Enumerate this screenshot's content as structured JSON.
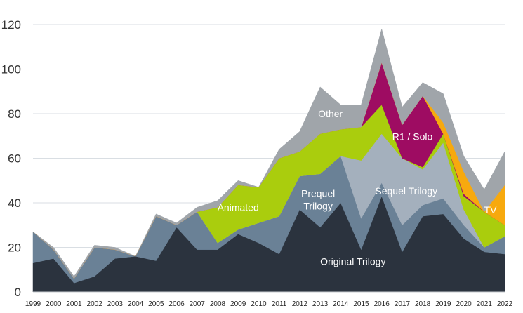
{
  "chart_data": {
    "type": "area",
    "stacked": true,
    "title": "",
    "xlabel": "",
    "ylabel": "",
    "ylim": [
      0,
      120
    ],
    "yticks": [
      0,
      20,
      40,
      60,
      80,
      100,
      120
    ],
    "grid": true,
    "categories": [
      "1999",
      "2000",
      "2001",
      "2002",
      "2003",
      "2004",
      "2005",
      "2006",
      "2007",
      "2008",
      "2009",
      "2010",
      "2011",
      "2012",
      "2013",
      "2014",
      "2015",
      "2016",
      "2017",
      "2018",
      "2019",
      "2020",
      "2021",
      "2022"
    ],
    "series": [
      {
        "name": "Original Trilogy",
        "color": "#2b333e",
        "values": [
          13,
          15,
          4,
          7,
          15,
          16,
          14,
          29,
          19,
          19,
          26,
          22,
          17,
          37,
          29,
          40,
          19,
          43,
          18,
          34,
          35,
          24,
          18,
          17
        ]
      },
      {
        "name": "Prequel Trilogy",
        "color": "#6a8196",
        "values": [
          14,
          4,
          2,
          13,
          4,
          0,
          20,
          1,
          17,
          3,
          2,
          9,
          17,
          15,
          24,
          21,
          14,
          6,
          12,
          5,
          7,
          6,
          2,
          8
        ]
      },
      {
        "name": "Sequel Trilogy",
        "color": "#a4b0bd",
        "values": [
          0,
          0,
          0,
          0,
          0,
          0,
          0,
          0,
          0,
          0,
          0,
          0,
          0,
          0,
          0,
          0,
          26,
          22,
          30,
          16,
          25,
          7,
          0,
          0
        ]
      },
      {
        "name": "Animated",
        "color": "#aacd0d",
        "values": [
          0,
          0,
          0,
          0,
          0,
          0,
          0,
          0,
          0,
          16,
          20,
          16,
          26,
          11,
          18,
          12,
          15,
          13,
          0,
          1,
          4,
          6,
          16,
          5
        ]
      },
      {
        "name": "R1 / Solo",
        "color": "#9e0c62",
        "values": [
          0,
          0,
          0,
          0,
          0,
          0,
          0,
          0,
          0,
          0,
          0,
          0,
          0,
          0,
          0,
          0,
          0,
          19,
          15,
          32,
          0,
          1,
          0,
          0
        ]
      },
      {
        "name": "TV",
        "color": "#f7a90e",
        "values": [
          0,
          0,
          0,
          0,
          0,
          0,
          0,
          0,
          0,
          0,
          0,
          0,
          0,
          0,
          0,
          0,
          0,
          0,
          0,
          0,
          5,
          10,
          0,
          18
        ]
      },
      {
        "name": "Other",
        "color": "#a0a5aa",
        "values": [
          0,
          1,
          1,
          1,
          1,
          0,
          1,
          1,
          2,
          3,
          2,
          0,
          4,
          9,
          21,
          11,
          10,
          15,
          8,
          6,
          13,
          7,
          10,
          15
        ]
      }
    ],
    "labels": [
      {
        "text": "Original Trilogy",
        "series": "Original Trilogy"
      },
      {
        "text": "Prequel\nTrilogy",
        "series": "Prequel Trilogy"
      },
      {
        "text": "Sequel Trilogy",
        "series": "Sequel Trilogy"
      },
      {
        "text": "Animated",
        "series": "Animated"
      },
      {
        "text": "R1 / Solo",
        "series": "R1 / Solo"
      },
      {
        "text": "TV",
        "series": "TV"
      },
      {
        "text": "Other",
        "series": "Other"
      }
    ]
  }
}
